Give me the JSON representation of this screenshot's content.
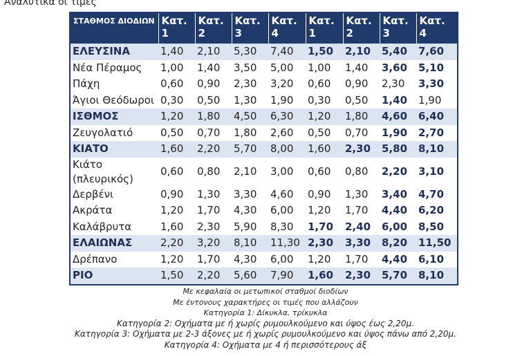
{
  "heading": "Αναλυτικά οι τιμές",
  "table": {
    "header": [
      "ΣΤΑΘΜΟΣ ΔΙΟΔΙΩΝ",
      "Κατ. 1",
      "Κατ. 2",
      "Κατ. 3",
      "Κατ. 4",
      "Κατ. 1",
      "Κατ. 2",
      "Κατ. 3",
      "Κατ. 4"
    ],
    "rows": [
      [
        "ΕΛΕΥΣΙΝΑ",
        "1,40",
        "2,10",
        "5,30",
        "7,40",
        "1,50",
        "2,10",
        "5,40",
        "7,60"
      ],
      [
        "Νέα Πέραμος",
        "1,00",
        "1,40",
        "3,50",
        "5,00",
        "1,00",
        "1,40",
        "3,60",
        "5,10"
      ],
      [
        "Πάχη",
        "0,60",
        "0,90",
        "2,30",
        "3,20",
        "0,60",
        "0,90",
        "2,30",
        "3,30"
      ],
      [
        "Άγιοι Θεόδωροι",
        "0,30",
        "0,50",
        "1,30",
        "1,90",
        "0,30",
        "0,50",
        "1,40",
        "1,90"
      ],
      [
        "ΙΣΘΜΟΣ",
        "1,20",
        "1,80",
        "4,50",
        "6,30",
        "1,20",
        "1,80",
        "4,60",
        "6,40"
      ],
      [
        "Ζευγολατιό",
        "0,50",
        "0,70",
        "1,80",
        "2,60",
        "0,50",
        "0,70",
        "1,90",
        "2,70"
      ],
      [
        "ΚΙΑΤΟ",
        "1,60",
        "2,20",
        "5,70",
        "8,00",
        "1,60",
        "2,30",
        "5,80",
        "8,10"
      ],
      [
        "Κιάτο (πλευρικός)",
        "0,60",
        "0,80",
        "2,10",
        "3,00",
        "0,60",
        "0,80",
        "2,20",
        "3,10"
      ],
      [
        "Δερβένι",
        "0,90",
        "1,30",
        "3,30",
        "4,60",
        "0,90",
        "1,30",
        "3,40",
        "4,70"
      ],
      [
        "Ακράτα",
        "1,20",
        "1,70",
        "4,30",
        "6,00",
        "1,20",
        "1,70",
        "4,40",
        "6,20"
      ],
      [
        "Καλάβρυτα",
        "1,60",
        "2,30",
        "5,90",
        "8,30",
        "1,70",
        "2,40",
        "6,00",
        "8,50"
      ],
      [
        "ΕΛΑΙΩΝΑΣ",
        "2,20",
        "3,20",
        "8,10",
        "11,30",
        "2,30",
        "3,30",
        "8,20",
        "11,50"
      ],
      [
        "Δρέπανο",
        "1,20",
        "1,70",
        "4,30",
        "6,00",
        "1,20",
        "1,70",
        "4,40",
        "6,10"
      ],
      [
        "ΡΙΟ",
        "1,50",
        "2,20",
        "5,60",
        "7,90",
        "1,60",
        "2,30",
        "5,70",
        "8,10"
      ]
    ]
  },
  "notes": [
    "Με κεφαλαία οι μετωπικοί σταθμοί διοδίων",
    "Με έντονους χαρακτήρες οι τιμές που αλλάζουν",
    "Κατηγορία 1: Δίκυκλα, τρίκυκλα",
    "Κατηγορία 2: Οχήματα με ή χωρίς ρυμουλκούμενο και ύψος έως 2,20μ.",
    "Κατηγορία 3: Οχήματα με 2-3 άξονες με ή χωρίς ρυμουλκούμενο και ύψος πάνω από 2,20μ.",
    "Κατηγορία 4: Οχήματα με 4 ή περισσότερους άξ"
  ]
}
